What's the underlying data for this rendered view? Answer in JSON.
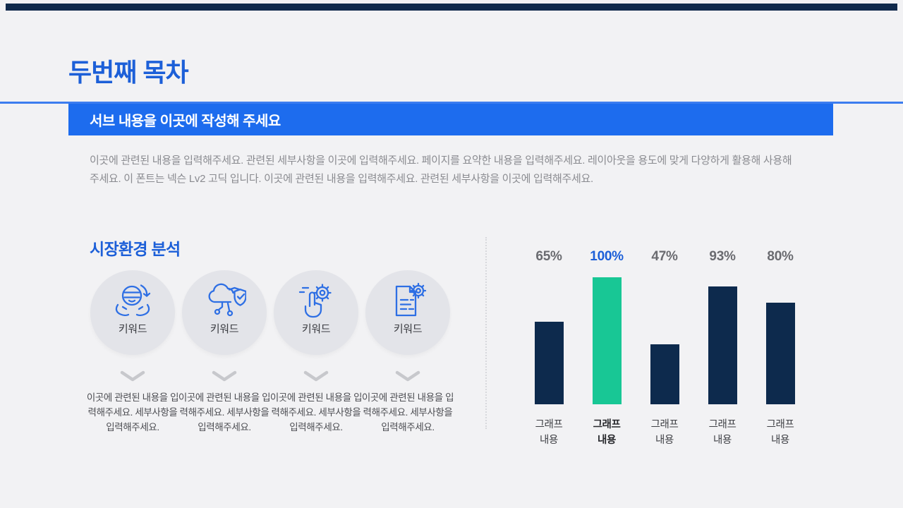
{
  "page": {
    "background": "#F2F2F4",
    "accent_blue": "#1C5FD8",
    "banner_blue": "#1D6CEE",
    "navy": "#0D2A4D",
    "green": "#18C795"
  },
  "header": {
    "title": "두번째 목차",
    "banner_text": "서브 내용을 이곳에 작성해 주세요"
  },
  "intro": {
    "paragraph": "이곳에 관련된 내용을 입력해주세요. 관련된 세부사항을 이곳에 입력해주세요. 페이지를 요약한 내용을 입력해주세요. 레이아웃을 용도에 맞게 다양하게 활용해 사용해주세요. 이 폰트는 넥슨 Lv2 고딕 입니다. 이곳에 관련된 내용을 입력해주세요. 관련된 세부사항을 이곳에 입력해주세요."
  },
  "analysis": {
    "heading": "시장환경 분석",
    "items": [
      {
        "icon": "globe-hands-icon",
        "label": "키워드",
        "description": "이곳에 관련된 내용을 입력해주세요. 세부사항을 입력해주세요."
      },
      {
        "icon": "cloud-security-icon",
        "label": "키워드",
        "description": "이곳에 관련된 내용을 입력해주세요. 세부사항을 입력해주세요."
      },
      {
        "icon": "tap-gear-icon",
        "label": "키워드",
        "description": "이곳에 관련된 내용을 입력해주세요. 세부사항을 입력해주세요."
      },
      {
        "icon": "document-gear-icon",
        "label": "키워드",
        "description": "이곳에 관련된 내용을 입력해주세요. 세부사항을 입력해주세요."
      }
    ]
  },
  "chart_data": {
    "type": "bar",
    "categories": [
      "그래프 내용",
      "그래프 내용",
      "그래프 내용",
      "그래프 내용",
      "그래프 내용"
    ],
    "values": [
      65,
      100,
      47,
      93,
      80
    ],
    "value_labels": [
      "65%",
      "100%",
      "47%",
      "93%",
      "80%"
    ],
    "highlight_index": 1,
    "bar_color": "#0D2A4D",
    "highlight_color": "#18C795",
    "value_label_color": "#6A6B70",
    "highlight_value_label_color": "#1C5FD8",
    "ylim": [
      0,
      100
    ],
    "grid": false,
    "legend": false,
    "title": "",
    "xlabel": "",
    "ylabel": ""
  }
}
